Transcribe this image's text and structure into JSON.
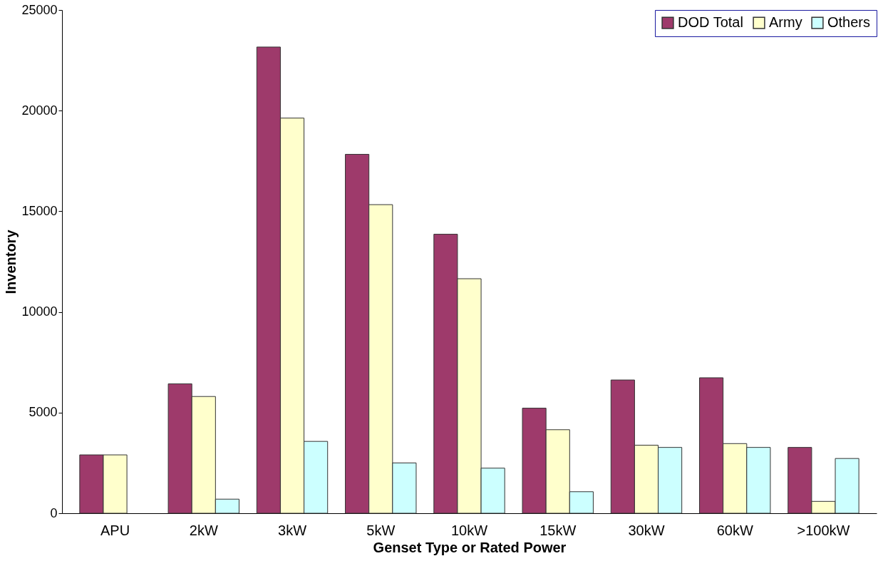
{
  "chart_data": {
    "type": "bar",
    "xlabel": "Genset Type or Rated Power",
    "ylabel": "Inventory",
    "categories": [
      "APU",
      "2kW",
      "3kW",
      "5kW",
      "10kW",
      "15kW",
      "30kW",
      "60kW",
      ">100kW"
    ],
    "series": [
      {
        "name": "DOD Total",
        "color": "#9e3a6b",
        "values": [
          2900,
          6430,
          23160,
          17830,
          13860,
          5220,
          6620,
          6730,
          3270
        ]
      },
      {
        "name": "Army",
        "color": "#ffffcc",
        "values": [
          2900,
          5800,
          19630,
          15330,
          11650,
          4150,
          3380,
          3460,
          590
        ]
      },
      {
        "name": "Others",
        "color": "#ccffff",
        "values": [
          null,
          700,
          3570,
          2500,
          2240,
          1070,
          3270,
          3270,
          2720
        ]
      }
    ],
    "ylim": [
      0,
      25000
    ],
    "yticks": [
      0,
      5000,
      10000,
      15000,
      20000,
      25000
    ],
    "grid": false,
    "legend": "top right"
  }
}
